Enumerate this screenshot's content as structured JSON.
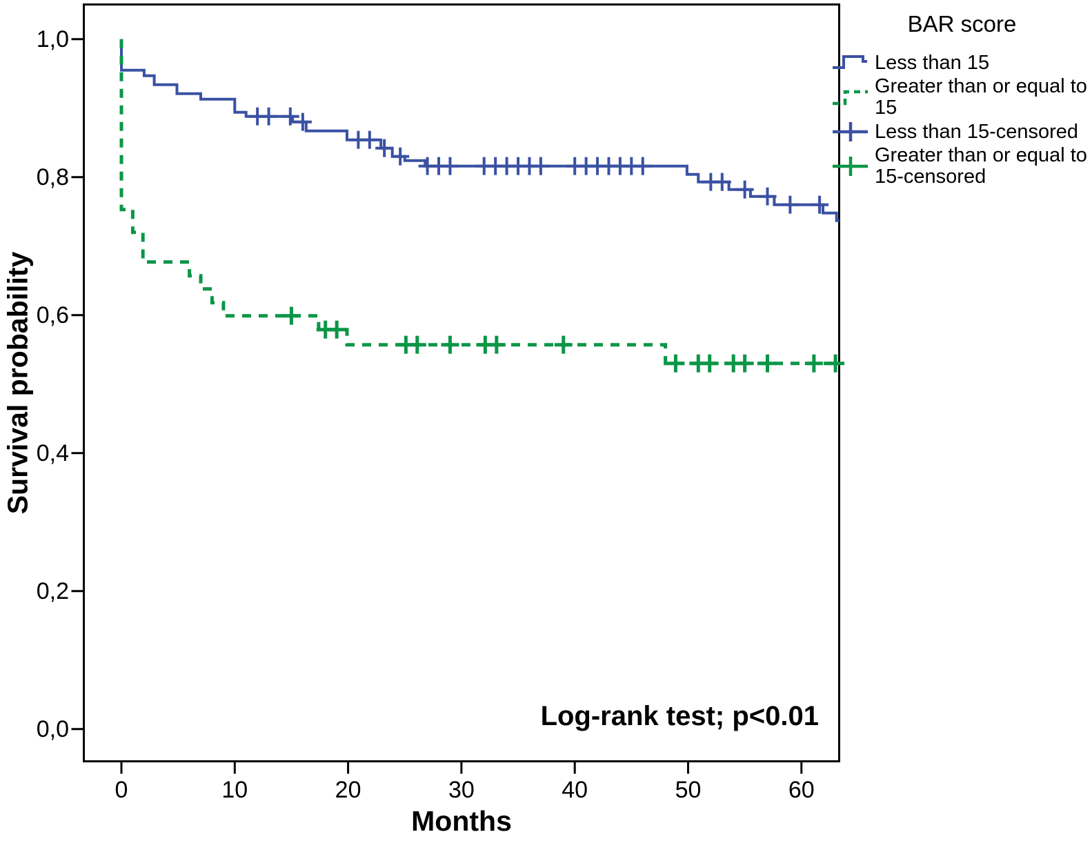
{
  "chart_data": {
    "type": "line",
    "subtype": "kaplan-meier-step",
    "title": "",
    "xlabel": "Months",
    "ylabel": "Survival probability",
    "xlim": [
      -3.35,
      63.35
    ],
    "ylim": [
      -0.047,
      1.05
    ],
    "grid": false,
    "xticks": [
      0,
      10,
      20,
      30,
      40,
      50,
      60
    ],
    "xtick_labels": [
      "0",
      "10",
      "20",
      "30",
      "40",
      "50",
      "60"
    ],
    "yticks": [
      0.0,
      0.2,
      0.4,
      0.6,
      0.8,
      1.0
    ],
    "ytick_labels": [
      "0,0",
      "0,2",
      "0,4",
      "0,6",
      "0,8",
      "1,0"
    ],
    "annotation": "Log-rank test; p<0.01",
    "axis_color": "#000000",
    "legend_position": "top-right",
    "series": [
      {
        "name": "Less than 15",
        "color": "#3a51a3",
        "line_style": "solid",
        "end_x": 63.35,
        "steps": [
          [
            0,
            1.0
          ],
          [
            0,
            0.955
          ],
          [
            2.0,
            0.947
          ],
          [
            2.9,
            0.934
          ],
          [
            4.9,
            0.921
          ],
          [
            7.0,
            0.913
          ],
          [
            10.0,
            0.894
          ],
          [
            11.0,
            0.888
          ],
          [
            15.1,
            0.88
          ],
          [
            16.3,
            0.867
          ],
          [
            19.9,
            0.854
          ],
          [
            22.9,
            0.842
          ],
          [
            23.9,
            0.83
          ],
          [
            25.0,
            0.824
          ],
          [
            26.8,
            0.816
          ],
          [
            49.9,
            0.804
          ],
          [
            50.9,
            0.793
          ],
          [
            53.6,
            0.782
          ],
          [
            55.5,
            0.772
          ],
          [
            57.6,
            0.76
          ],
          [
            61.9,
            0.748
          ],
          [
            63.1,
            0.737
          ]
        ],
        "censored": [
          [
            12.0,
            0.888
          ],
          [
            13.0,
            0.888
          ],
          [
            14.9,
            0.888
          ],
          [
            16.0,
            0.88
          ],
          [
            20.9,
            0.854
          ],
          [
            21.9,
            0.854
          ],
          [
            23.2,
            0.842
          ],
          [
            24.6,
            0.83
          ],
          [
            27.0,
            0.816
          ],
          [
            28.0,
            0.816
          ],
          [
            29.0,
            0.816
          ],
          [
            32.0,
            0.816
          ],
          [
            33.0,
            0.816
          ],
          [
            34.0,
            0.816
          ],
          [
            35.0,
            0.816
          ],
          [
            36.0,
            0.816
          ],
          [
            37.0,
            0.816
          ],
          [
            40.0,
            0.816
          ],
          [
            41.0,
            0.816
          ],
          [
            42.0,
            0.816
          ],
          [
            43.0,
            0.816
          ],
          [
            44.0,
            0.816
          ],
          [
            45.0,
            0.816
          ],
          [
            46.0,
            0.816
          ],
          [
            52.0,
            0.793
          ],
          [
            53.0,
            0.793
          ],
          [
            55.0,
            0.782
          ],
          [
            57.0,
            0.772
          ],
          [
            59.0,
            0.76
          ],
          [
            61.6,
            0.76
          ]
        ]
      },
      {
        "name": "Greater than or equal to 15",
        "color": "#0b9647",
        "line_style": "dashed",
        "end_x": 63.35,
        "steps": [
          [
            0,
            1.0
          ],
          [
            0,
            0.753
          ],
          [
            1.0,
            0.72
          ],
          [
            1.9,
            0.677
          ],
          [
            6.0,
            0.657
          ],
          [
            7.0,
            0.638
          ],
          [
            8.0,
            0.618
          ],
          [
            9.0,
            0.599
          ],
          [
            17.4,
            0.579
          ],
          [
            19.9,
            0.557
          ],
          [
            48.0,
            0.53
          ]
        ],
        "censored": [
          [
            15.0,
            0.599
          ],
          [
            18.0,
            0.579
          ],
          [
            19.0,
            0.579
          ],
          [
            25.1,
            0.557
          ],
          [
            26.1,
            0.557
          ],
          [
            29.0,
            0.557
          ],
          [
            32.1,
            0.557
          ],
          [
            33.1,
            0.557
          ],
          [
            39.0,
            0.557
          ],
          [
            48.9,
            0.53
          ],
          [
            50.9,
            0.53
          ],
          [
            51.9,
            0.53
          ],
          [
            54.0,
            0.53
          ],
          [
            55.0,
            0.53
          ],
          [
            57.0,
            0.53
          ],
          [
            61.1,
            0.53
          ],
          [
            63.0,
            0.53
          ]
        ]
      }
    ],
    "legend": {
      "title": "BAR score",
      "entries": [
        {
          "label": "Less than 15",
          "color": "#3a51a3",
          "marker": "step-solid"
        },
        {
          "label": "Greater than or equal to 15",
          "color": "#0b9647",
          "marker": "step-dashed"
        },
        {
          "label": "Less than 15-censored",
          "color": "#3a51a3",
          "marker": "plus"
        },
        {
          "label": "Greater than or equal to 15-censored",
          "color": "#0b9647",
          "marker": "plus"
        }
      ]
    }
  }
}
